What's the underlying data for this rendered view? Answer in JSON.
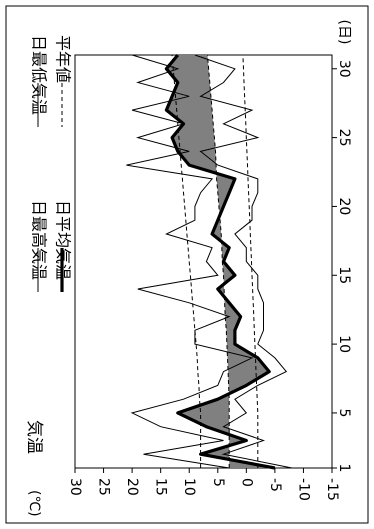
{
  "chart_data": {
    "type": "line",
    "orientation": "rotated-90-clockwise",
    "title": "気温",
    "unit_label": "(℃)",
    "x_unit_label": "(日)",
    "x_ticks": [
      "1",
      "5",
      "10",
      "15",
      "20",
      "25",
      "30"
    ],
    "y_ticks": [
      "30",
      "25",
      "20",
      "15",
      "10",
      "5",
      "0",
      "-5",
      "-10",
      "-15"
    ],
    "xlim": [
      1,
      31
    ],
    "ylim": [
      -15,
      30
    ],
    "grid": false,
    "legend": [
      {
        "label": "日最高気温",
        "style": "thin"
      },
      {
        "label": "日平均気温",
        "style": "bold"
      },
      {
        "label": "日最低気温",
        "style": "thin"
      },
      {
        "label": "平年値",
        "style": "dashed"
      }
    ],
    "anomaly_fill_color": "#808080",
    "x": [
      1,
      2,
      3,
      4,
      5,
      6,
      7,
      8,
      9,
      10,
      11,
      12,
      13,
      14,
      15,
      16,
      17,
      18,
      19,
      20,
      21,
      22,
      23,
      24,
      25,
      26,
      27,
      28,
      29,
      30,
      31
    ],
    "series": [
      {
        "name": "日最高気温",
        "style": "thin",
        "values": [
          3,
          18,
          4,
          15,
          20,
          11,
          5,
          4,
          -1,
          9,
          9,
          3,
          10,
          19,
          5,
          7,
          6,
          14,
          9,
          9,
          8,
          6,
          21,
          10,
          19,
          11,
          20,
          10,
          19,
          12,
          20
        ]
      },
      {
        "name": "日平均気温",
        "style": "bold",
        "values": [
          -5,
          8,
          0,
          7,
          12,
          5,
          0,
          -4,
          -2,
          2,
          2,
          1,
          3,
          5,
          2,
          4,
          3,
          6,
          5,
          4,
          3,
          2,
          10,
          12,
          13,
          11,
          14,
          13,
          12,
          14,
          12
        ]
      },
      {
        "name": "日最低気温",
        "style": "thin",
        "values": [
          -8,
          4,
          -3,
          4,
          0,
          2,
          -2,
          -7,
          -5,
          -2,
          -3,
          -3,
          -3,
          -2,
          -2,
          0,
          0,
          2,
          -1,
          -1,
          -2,
          -2,
          5,
          8,
          -2,
          4,
          -1,
          8,
          4,
          2,
          9
        ]
      },
      {
        "name": "平年値",
        "style": "dashed",
        "values": [
          8,
          8,
          8,
          8,
          8,
          8.2,
          8.3,
          8.5,
          8.6,
          8.8,
          9,
          9.2,
          9.4,
          9.6,
          9.8,
          10,
          10.2,
          10.4,
          10.6,
          10.8,
          11,
          11.2,
          11.4,
          11.6,
          11.8,
          12,
          12.2,
          12.4,
          12.6,
          12.8,
          13
        ]
      },
      {
        "name": "平年値",
        "style": "dashed",
        "values": [
          3,
          3,
          3,
          3,
          3,
          3,
          3.1,
          3.2,
          3.3,
          3.4,
          3.5,
          3.7,
          3.8,
          3.9,
          4,
          4.2,
          4.3,
          4.4,
          4.6,
          4.8,
          5,
          5.2,
          5.3,
          5.4,
          5.6,
          5.8,
          6,
          6.2,
          6.4,
          6.6,
          6.8
        ]
      },
      {
        "name": "平年値",
        "style": "dashed",
        "values": [
          -2,
          -2,
          -2,
          -2,
          -2,
          -1.9,
          -1.8,
          -1.7,
          -1.6,
          -1.5,
          -1.4,
          -1.3,
          -1.2,
          -1.1,
          -1,
          -0.9,
          -0.8,
          -0.7,
          -0.6,
          -0.5,
          -0.4,
          -0.3,
          -0.2,
          -0.1,
          0,
          0.1,
          0.2,
          0.3,
          0.4,
          0.5,
          0.6
        ]
      }
    ]
  }
}
